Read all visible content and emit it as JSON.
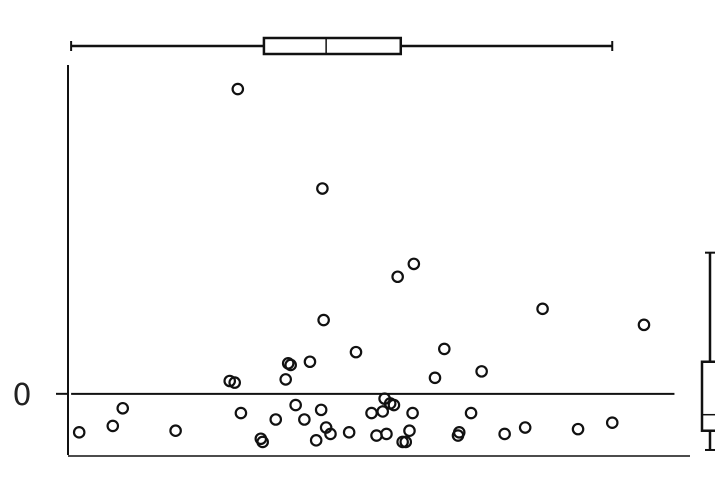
{
  "chart_data": {
    "type": "scatter",
    "title": "",
    "xlabel": "",
    "ylabel": "",
    "xlim": [
      0,
      100
    ],
    "ylim": [
      -4,
      20.5
    ],
    "y_tick_labels": [
      {
        "value": 0,
        "label": "0"
      }
    ],
    "reference_line_y": 0,
    "grid": false,
    "legend": "none",
    "marker": "open-circle",
    "colors": {
      "ink": "#111111",
      "background": "#ffffff"
    },
    "points": [
      {
        "x": 1.8,
        "y": -2.4
      },
      {
        "x": 7.2,
        "y": -2.0
      },
      {
        "x": 8.8,
        "y": -0.9
      },
      {
        "x": 17.3,
        "y": -2.3
      },
      {
        "x": 26.0,
        "y": 0.8
      },
      {
        "x": 26.8,
        "y": 0.7
      },
      {
        "x": 27.3,
        "y": 19.0
      },
      {
        "x": 27.8,
        "y": -1.2
      },
      {
        "x": 31.0,
        "y": -2.8
      },
      {
        "x": 31.3,
        "y": -3.0
      },
      {
        "x": 33.4,
        "y": -1.6
      },
      {
        "x": 35.0,
        "y": 0.9
      },
      {
        "x": 35.4,
        "y": 1.9
      },
      {
        "x": 35.8,
        "y": 1.8
      },
      {
        "x": 36.6,
        "y": -0.7
      },
      {
        "x": 38.0,
        "y": -1.6
      },
      {
        "x": 38.9,
        "y": 2.0
      },
      {
        "x": 39.9,
        "y": -2.9
      },
      {
        "x": 40.7,
        "y": -1.0
      },
      {
        "x": 40.9,
        "y": 12.8
      },
      {
        "x": 41.1,
        "y": 4.6
      },
      {
        "x": 41.5,
        "y": -2.1
      },
      {
        "x": 42.2,
        "y": -2.5
      },
      {
        "x": 45.2,
        "y": -2.4
      },
      {
        "x": 46.3,
        "y": 2.6
      },
      {
        "x": 48.8,
        "y": -1.2
      },
      {
        "x": 49.6,
        "y": -2.6
      },
      {
        "x": 50.6,
        "y": -1.1
      },
      {
        "x": 50.9,
        "y": -0.3
      },
      {
        "x": 51.2,
        "y": -2.5
      },
      {
        "x": 51.8,
        "y": -0.6
      },
      {
        "x": 52.4,
        "y": -0.7
      },
      {
        "x": 53.0,
        "y": 7.3
      },
      {
        "x": 53.8,
        "y": -3.0
      },
      {
        "x": 54.3,
        "y": -3.0
      },
      {
        "x": 54.9,
        "y": -2.3
      },
      {
        "x": 55.4,
        "y": -1.2
      },
      {
        "x": 55.6,
        "y": 8.1
      },
      {
        "x": 59.0,
        "y": 1.0
      },
      {
        "x": 60.5,
        "y": 2.8
      },
      {
        "x": 62.7,
        "y": -2.6
      },
      {
        "x": 62.9,
        "y": -2.4
      },
      {
        "x": 64.8,
        "y": -1.2
      },
      {
        "x": 66.5,
        "y": 1.4
      },
      {
        "x": 70.2,
        "y": -2.5
      },
      {
        "x": 73.5,
        "y": -2.1
      },
      {
        "x": 76.3,
        "y": 5.3
      },
      {
        "x": 82.0,
        "y": -2.2
      },
      {
        "x": 87.5,
        "y": -1.8
      },
      {
        "x": 92.6,
        "y": 4.3
      }
    ],
    "x_marginal_boxplot": {
      "whisker_low": 0.5,
      "q1": 31.5,
      "median": 41.5,
      "q3": 53.5,
      "whisker_high": 87.5
    },
    "y_marginal_boxplot": {
      "whisker_low": -3.5,
      "q1": -2.3,
      "median": -1.3,
      "q3": 2.0,
      "whisker_high": 8.8
    }
  }
}
